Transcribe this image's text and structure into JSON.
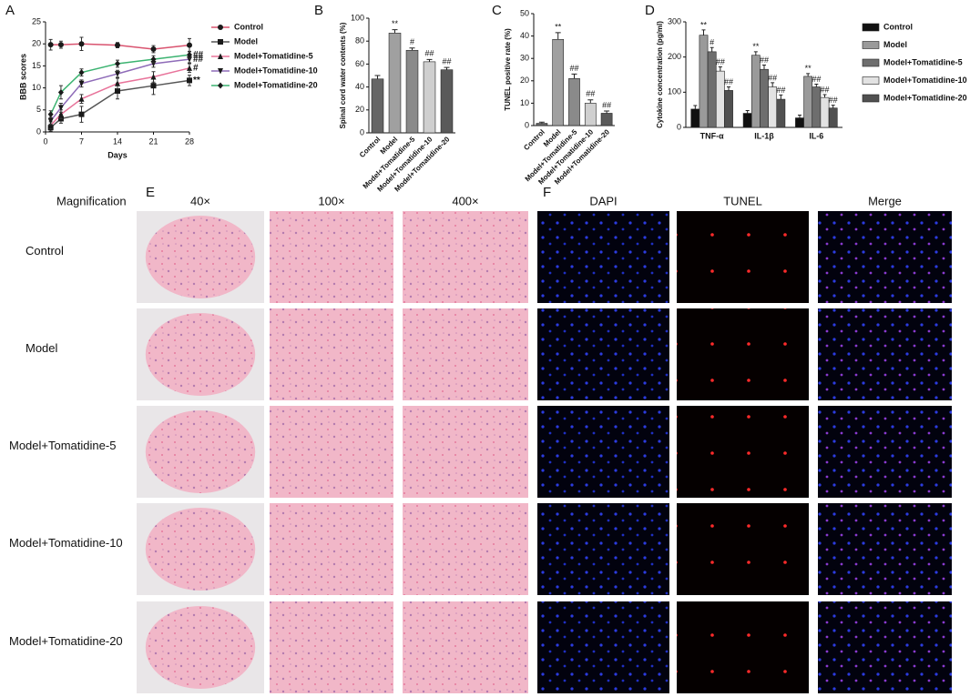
{
  "chart_data": [
    {
      "type": "line",
      "panel": "A",
      "xlabel": "Days",
      "ylabel": "BBB scores",
      "x": [
        1,
        3,
        7,
        14,
        21,
        28
      ],
      "xlim": [
        0,
        28
      ],
      "xticks": [
        0,
        7,
        14,
        21,
        28
      ],
      "ylim": [
        0,
        25
      ],
      "yticks": [
        0,
        5,
        10,
        15,
        20,
        25
      ],
      "marker_color": "#1a1a1a",
      "series": [
        {
          "name": "Control",
          "color": "#d9536f",
          "marker": "circle",
          "values": [
            19.8,
            19.8,
            20,
            19.7,
            18.8,
            19.7
          ],
          "errors": [
            1.2,
            0.8,
            1.5,
            0.6,
            0.8,
            1.5
          ]
        },
        {
          "name": "Model",
          "color": "#555555",
          "marker": "square",
          "values": [
            1,
            3,
            4,
            9.3,
            10.5,
            11.7
          ],
          "errors": [
            0.8,
            1,
            1.8,
            1.8,
            2,
            1.2
          ],
          "annotation": "**"
        },
        {
          "name": "Model+Tomatidine-5",
          "color": "#e8739a",
          "marker": "triangle",
          "values": [
            1.5,
            4,
            7.5,
            11,
            12.5,
            14.5
          ],
          "errors": [
            0.8,
            1,
            1,
            1.2,
            1.2,
            1
          ],
          "annotation": "#"
        },
        {
          "name": "Model+Tomatidine-10",
          "color": "#8e6bb8",
          "marker": "triangle-down",
          "values": [
            2.5,
            5.5,
            11,
            13.2,
            15.5,
            16.5
          ],
          "errors": [
            0.8,
            1,
            0.8,
            0.8,
            0.8,
            0.8
          ],
          "annotation": "##"
        },
        {
          "name": "Model+Tomatidine-20",
          "color": "#3cb371",
          "marker": "diamond",
          "values": [
            4,
            9,
            13.5,
            15.5,
            16.5,
            17.5
          ],
          "errors": [
            0.8,
            1.5,
            0.8,
            0.8,
            0.8,
            0.8
          ],
          "annotation": "##"
        }
      ]
    },
    {
      "type": "bar",
      "panel": "B",
      "ylabel": "Spinal cord water contents (%)",
      "categories": [
        "Control",
        "Model",
        "Model+Tomatidine-5",
        "Model+Tomatidine-10",
        "Model+Tomatidine-20"
      ],
      "values": [
        47,
        87,
        72,
        62,
        55
      ],
      "errors": [
        3,
        3,
        2,
        2,
        2
      ],
      "annotations": [
        null,
        "**",
        "#",
        "##",
        "##"
      ],
      "colors": [
        "#666666",
        "#a0a0a0",
        "#8a8a8a",
        "#cfcfcf",
        "#5a5a5a"
      ],
      "ylim": [
        0,
        100
      ],
      "yticks": [
        0,
        20,
        40,
        60,
        80,
        100
      ]
    },
    {
      "type": "bar",
      "panel": "C",
      "ylabel": "TUNEL positive rate (%)",
      "categories": [
        "Control",
        "Model",
        "Model+Tomatidine-5",
        "Model+Tomatidine-10",
        "Model+Tomatidine-20"
      ],
      "values": [
        1,
        38.5,
        21,
        10,
        5.5
      ],
      "errors": [
        0.5,
        3,
        2,
        1.5,
        1
      ],
      "annotations": [
        null,
        "**",
        "##",
        "##",
        "##"
      ],
      "colors": [
        "#666666",
        "#a0a0a0",
        "#8a8a8a",
        "#cfcfcf",
        "#5a5a5a"
      ],
      "ylim": [
        0,
        50
      ],
      "yticks": [
        0,
        10,
        20,
        30,
        40,
        50
      ]
    },
    {
      "type": "grouped-bar",
      "panel": "D",
      "ylabel": "Cytokine concentration (pg/ml)",
      "categories": [
        "TNF-α",
        "IL-1β",
        "IL-6"
      ],
      "ylim": [
        0,
        300
      ],
      "yticks": [
        0,
        100,
        200,
        300
      ],
      "series": [
        {
          "name": "Control",
          "color": "#111111",
          "values": [
            52,
            40,
            27
          ],
          "errors": [
            10,
            8,
            8
          ]
        },
        {
          "name": "Model",
          "color": "#9a9a9a",
          "values": [
            262,
            205,
            145
          ],
          "errors": [
            15,
            10,
            8
          ],
          "annotations": [
            "**",
            "**",
            "**"
          ]
        },
        {
          "name": "Model+Tomatidine-5",
          "color": "#6e6e6e",
          "values": [
            215,
            165,
            115
          ],
          "errors": [
            12,
            12,
            8
          ],
          "annotations": [
            "#",
            "##",
            "##"
          ]
        },
        {
          "name": "Model+Tomatidine-10",
          "color": "#e2e2e2",
          "values": [
            160,
            115,
            85
          ],
          "errors": [
            12,
            12,
            8
          ],
          "annotations": [
            "##",
            "##",
            "##"
          ]
        },
        {
          "name": "Model+Tomatidine-20",
          "color": "#505050",
          "values": [
            105,
            80,
            55
          ],
          "errors": [
            10,
            12,
            8
          ],
          "annotations": [
            "##",
            "##",
            "##"
          ]
        }
      ]
    }
  ],
  "figure": {
    "panel_e": "E",
    "panel_f": "F",
    "magnification_label": "Magnification",
    "he_columns": [
      "40×",
      "100×",
      "400×"
    ],
    "fluor_columns": [
      "DAPI",
      "TUNEL",
      "Merge"
    ],
    "rows": [
      "Control",
      "Model",
      "Model+Tomatidine-5",
      "Model+Tomatidine-10",
      "Model+Tomatidine-20"
    ]
  }
}
